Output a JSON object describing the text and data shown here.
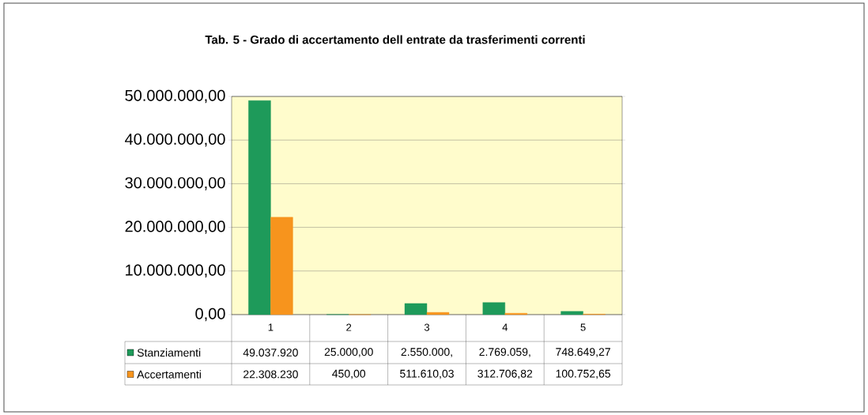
{
  "chart_data": {
    "type": "bar",
    "title": "Tab. 5 - Grado di accertamento dell entrate da trasferimenti correnti",
    "categories": [
      "1",
      "2",
      "3",
      "4",
      "5"
    ],
    "series": [
      {
        "name": "Stanziamenti",
        "color": "#1e9a5a",
        "values": [
          49037920,
          25000,
          2550000,
          2769059,
          748649.27
        ],
        "value_labels": [
          "49.037.920",
          "25.000,00",
          "2.550.000,",
          "2.769.059,",
          "748.649,27"
        ]
      },
      {
        "name": "Accertamenti",
        "color": "#f7941d",
        "values": [
          22308230,
          450,
          511610.03,
          312706.82,
          100752.65
        ],
        "value_labels": [
          "22.308.230",
          "450,00",
          "511.610,03",
          "312.706,82",
          "100.752,65"
        ]
      }
    ],
    "ylim": [
      0,
      50000000
    ],
    "yticks": [
      {
        "value": 0,
        "label": "0,00"
      },
      {
        "value": 10000000,
        "label": "10.000.000,00"
      },
      {
        "value": 20000000,
        "label": "20.000.000,00"
      },
      {
        "value": 30000000,
        "label": "30.000.000,00"
      },
      {
        "value": 40000000,
        "label": "40.000.000,00"
      },
      {
        "value": 50000000,
        "label": "50.000.000,00"
      }
    ],
    "grid": "y",
    "legend": "bottom"
  }
}
